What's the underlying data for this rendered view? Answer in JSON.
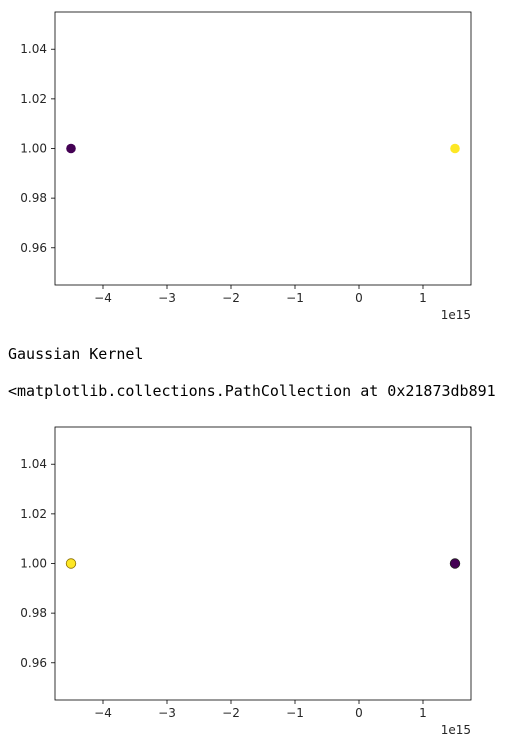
{
  "output": {
    "kernel_title": "Gaussian Kernel",
    "repr_text": "<matplotlib.collections.PathCollection at 0x21873db891"
  },
  "chart_data": [
    {
      "type": "scatter",
      "title": "",
      "xlabel": "",
      "ylabel": "",
      "x_offset_text": "1e15",
      "xlim": [
        -4.75,
        1.75
      ],
      "ylim": [
        0.945,
        1.055
      ],
      "xticks": [
        -4,
        -3,
        -2,
        -1,
        0,
        1
      ],
      "xtick_labels": [
        "−4",
        "−3",
        "−2",
        "−1",
        "0",
        "1"
      ],
      "yticks": [
        0.96,
        0.98,
        1.0,
        1.02,
        1.04
      ],
      "ytick_labels": [
        "0.96",
        "0.98",
        "1.00",
        "1.02",
        "1.04"
      ],
      "grid": false,
      "points": [
        {
          "x": -4.5,
          "y": 1.0,
          "color": "#440154",
          "edge": "none"
        },
        {
          "x": 1.5,
          "y": 1.0,
          "color": "#fde725",
          "edge": "none"
        }
      ]
    },
    {
      "type": "scatter",
      "title": "",
      "xlabel": "",
      "ylabel": "",
      "x_offset_text": "1e15",
      "xlim": [
        -4.75,
        1.75
      ],
      "ylim": [
        0.945,
        1.055
      ],
      "xticks": [
        -4,
        -3,
        -2,
        -1,
        0,
        1
      ],
      "xtick_labels": [
        "−4",
        "−3",
        "−2",
        "−1",
        "0",
        "1"
      ],
      "yticks": [
        0.96,
        0.98,
        1.0,
        1.02,
        1.04
      ],
      "ytick_labels": [
        "0.96",
        "0.98",
        "1.00",
        "1.02",
        "1.04"
      ],
      "grid": false,
      "points": [
        {
          "x": -4.5,
          "y": 1.0,
          "color": "#fde725",
          "edge": "#8a6d00"
        },
        {
          "x": 1.5,
          "y": 1.0,
          "color": "#440154",
          "edge": "#222222"
        }
      ]
    }
  ]
}
